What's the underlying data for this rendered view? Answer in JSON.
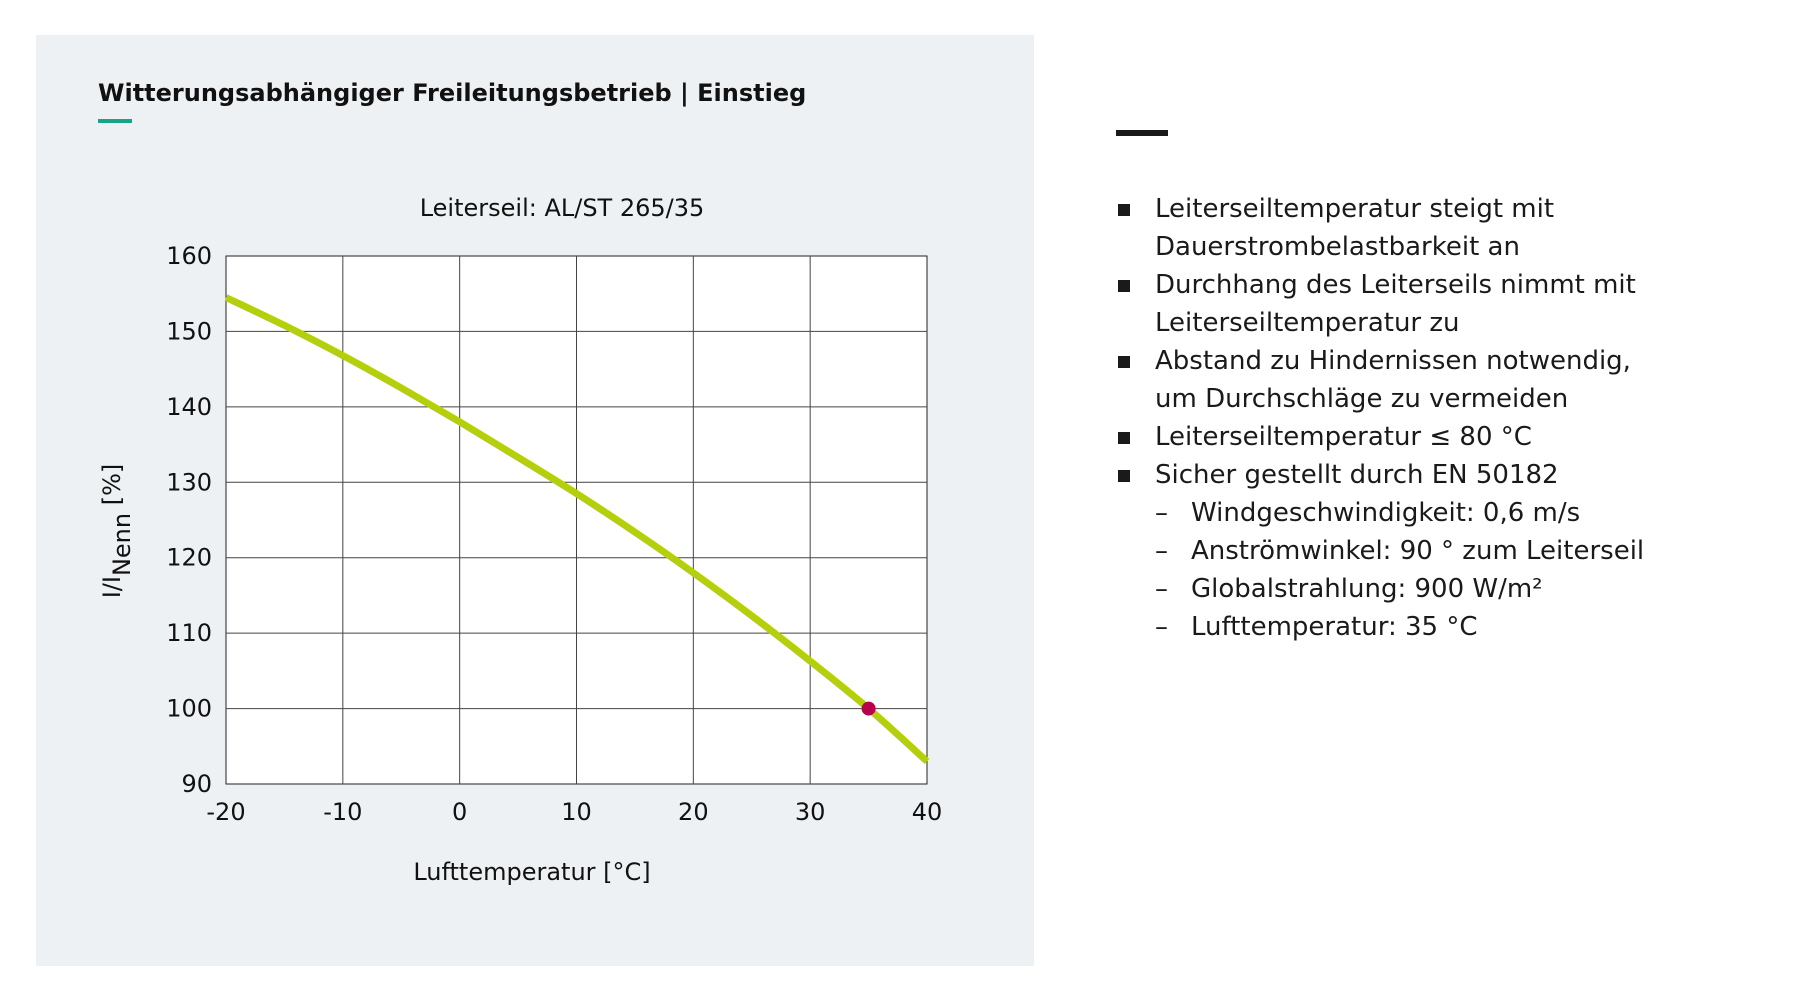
{
  "slide": {
    "title": "Witterungsabhängiger Freileitungsbetrieb | Einstieg"
  },
  "chart_data": {
    "type": "line",
    "title": "Leiterseil: AL/ST 265/35",
    "xlabel": "Lufttemperatur [°C]",
    "ylabel_main": "I/I",
    "ylabel_sub": "Nenn",
    "ylabel_unit": " [%]",
    "xlim": [
      -20,
      40
    ],
    "ylim": [
      90,
      160
    ],
    "x_ticks": [
      -20,
      -10,
      0,
      10,
      20,
      30,
      40
    ],
    "y_ticks": [
      90,
      100,
      110,
      120,
      130,
      140,
      150,
      160
    ],
    "grid": true,
    "series": [
      {
        "color": "#b5cf0c",
        "x": [
          -20,
          -15,
          -10,
          -5,
          0,
          5,
          10,
          15,
          20,
          25,
          30,
          35,
          40
        ],
        "values": [
          154.5,
          150.8,
          146.8,
          142.5,
          138.0,
          133.3,
          128.5,
          123.4,
          118.0,
          112.3,
          106.3,
          100.0,
          93.0
        ]
      }
    ],
    "highlight_point": {
      "x": 35,
      "y": 100,
      "color": "#b8004e"
    }
  },
  "bullets": [
    {
      "text": "Leiterseiltemperatur steigt mit",
      "text2": "Dauerstrombelastbarkeit an"
    },
    {
      "text": "Durchhang des Leiterseils nimmt mit",
      "text2": "Leiterseiltemperatur zu"
    },
    {
      "text": "Abstand zu Hindernissen notwendig,",
      "text2": "um Durchschläge zu vermeiden"
    },
    {
      "text": "Leiterseiltemperatur ≤ 80 °C"
    },
    {
      "text": "Sicher gestellt durch EN 50182"
    }
  ],
  "sub_bullets": [
    "Windgeschwindigkeit: 0,6 m/s",
    "Anströmwinkel: 90 ° zum Leiterseil",
    "Globalstrahlung: 900 W/m²",
    "Lufttemperatur: 35 °C"
  ],
  "colors": {
    "panel_bg": "#edf1f3",
    "accent": "#17a58a",
    "curve": "#b5cf0c",
    "marker": "#b8004e"
  }
}
